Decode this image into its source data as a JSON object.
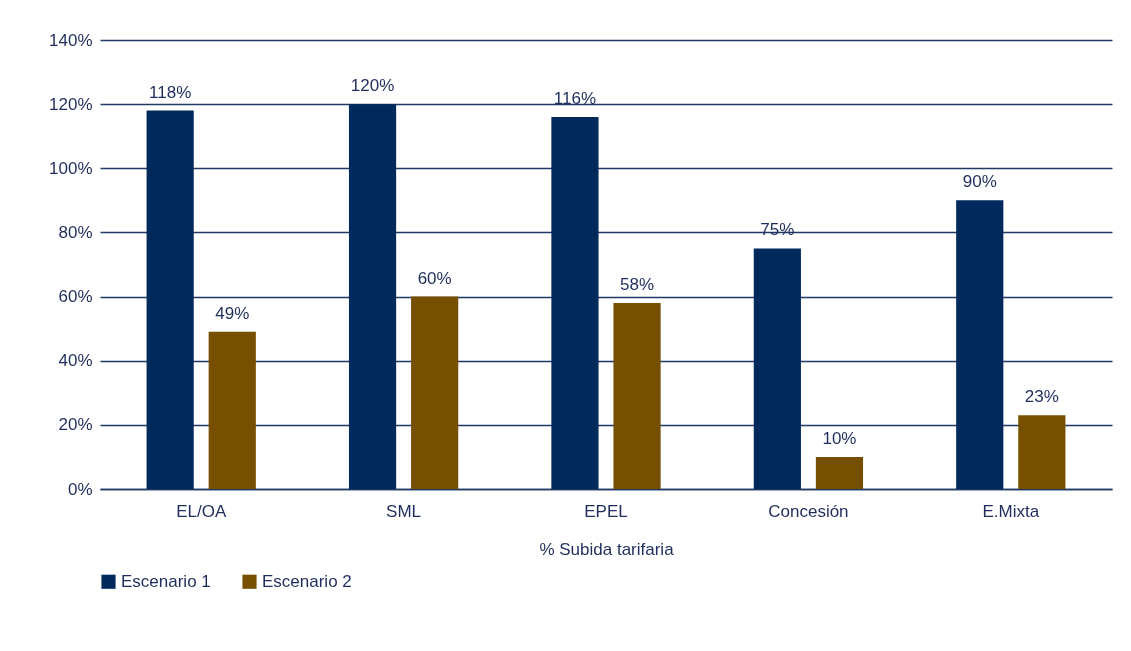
{
  "chart_data": {
    "type": "bar",
    "xlabel": "% Subida tarifaria",
    "categories": [
      "EL/OA",
      "SML",
      "EPEL",
      "Concesión",
      "E.Mixta"
    ],
    "series": [
      {
        "name": "Escenario 1",
        "color": "#002a5c",
        "values": [
          118,
          120,
          116,
          75,
          90
        ],
        "value_labels": [
          "118%",
          "120%",
          "116%",
          "75%",
          "90%"
        ]
      },
      {
        "name": "Escenario 2",
        "color": "#765000",
        "values": [
          49,
          60,
          58,
          10,
          23
        ],
        "value_labels": [
          "49%",
          "60%",
          "58%",
          "10%",
          "23%"
        ]
      }
    ],
    "ylim": [
      0,
      140
    ],
    "yticks": [
      {
        "value": 0,
        "label": "0%"
      },
      {
        "value": 20,
        "label": "20%"
      },
      {
        "value": 40,
        "label": "40%"
      },
      {
        "value": 60,
        "label": "60%"
      },
      {
        "value": 80,
        "label": "80%"
      },
      {
        "value": 100,
        "label": "100%"
      },
      {
        "value": 120,
        "label": "120%"
      },
      {
        "value": 140,
        "label": "140%"
      }
    ],
    "grid": "y",
    "legend": "bottom"
  }
}
